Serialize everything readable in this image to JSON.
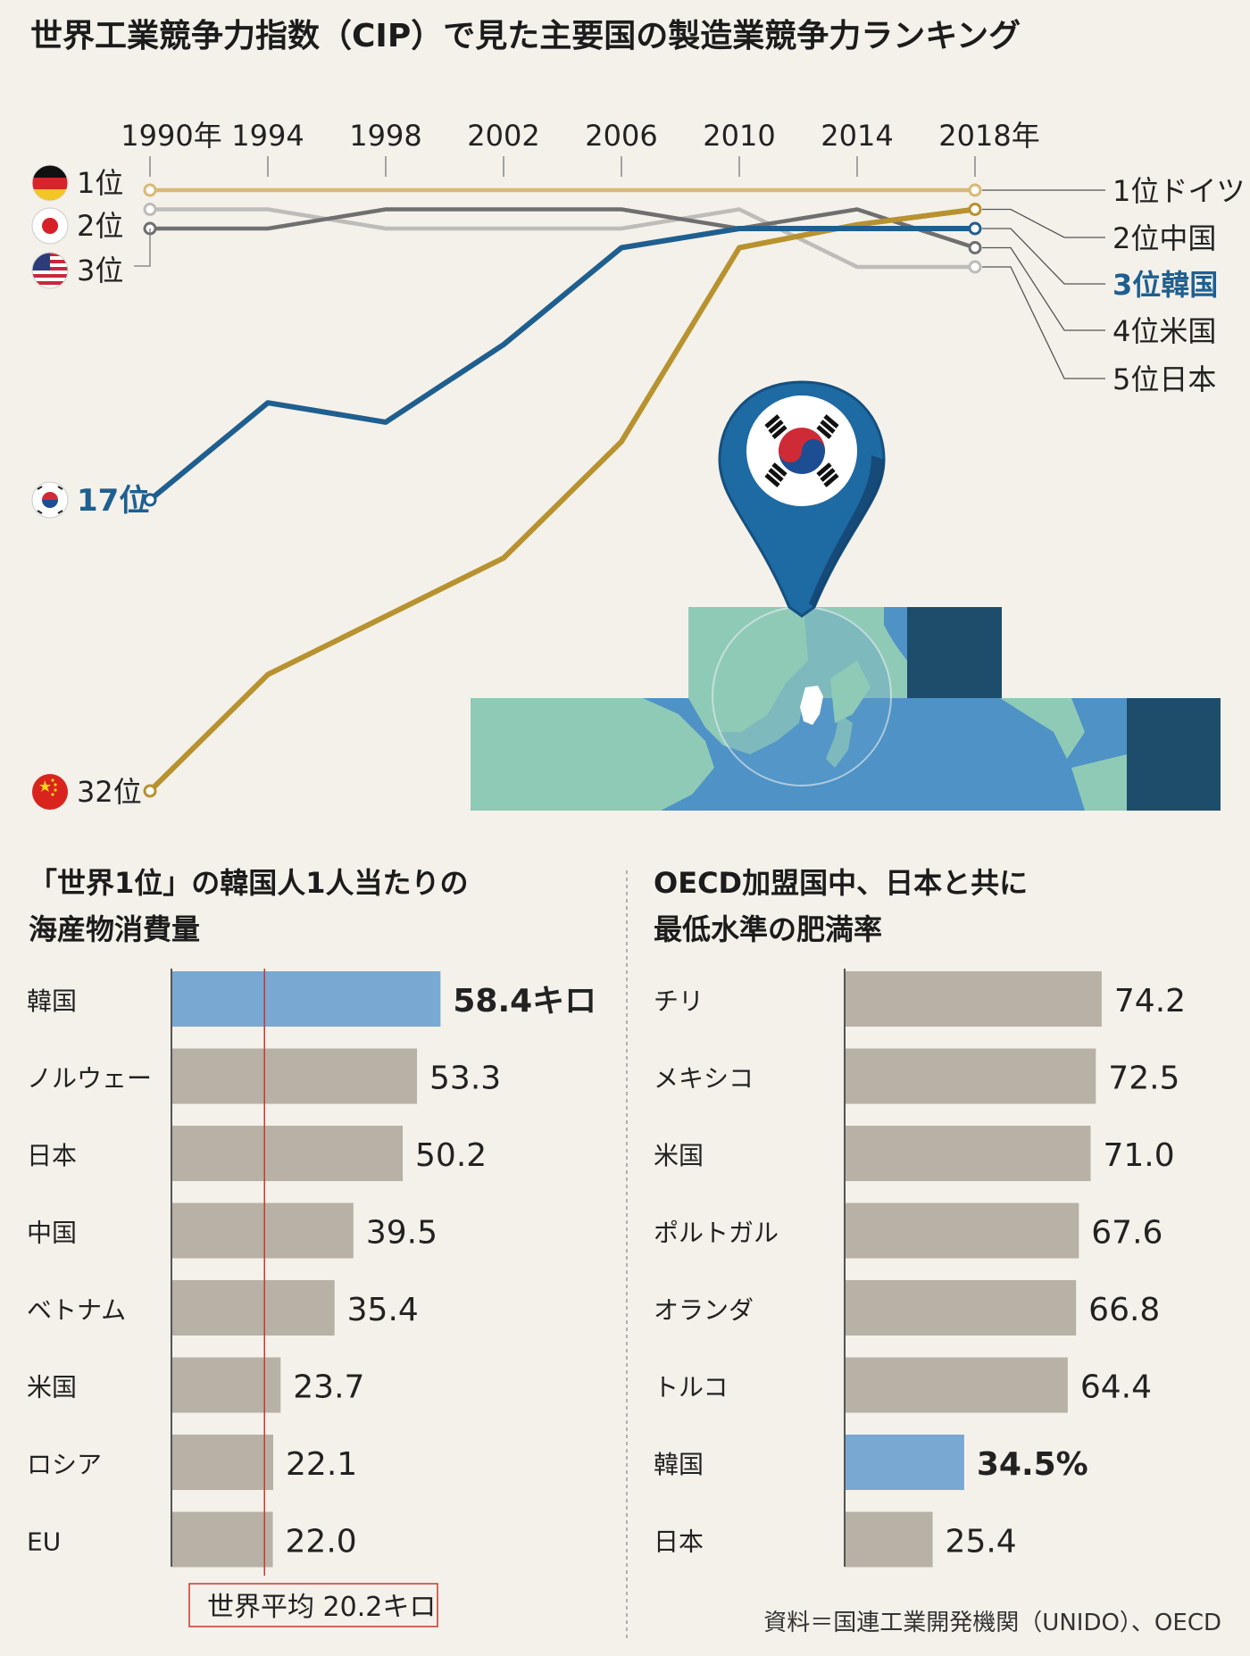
{
  "title": "世界工業競争力指数（CIP）で見た主要国の製造業競争力ランキング",
  "source": "資料＝国連工業開発機関（UNIDO）、OECD",
  "colors": {
    "background": "#f4f1ea",
    "korea": "#1f5f8f",
    "china": "#b7922f",
    "germany": "#d8b978",
    "japan": "#bdbcb9",
    "usa": "#6f6f6f",
    "bar_default": "#b7b1a6",
    "bar_highlight": "#79a8d2",
    "avg_line": "#c8372d",
    "map_land": "#8fcab7",
    "map_sea": "#4e92c6",
    "pin": "#1e6aa3"
  },
  "chart_data": [
    {
      "type": "line",
      "title": "世界工業競争力指数（CIP）で見た主要国の製造業競争力ランキング",
      "x": [
        "1990年",
        "1994",
        "1998",
        "2002",
        "2006",
        "2010",
        "2014",
        "2018年"
      ],
      "y_axis": "rank (inverted)",
      "ylim": [
        1,
        32
      ],
      "grid": false,
      "start_labels": [
        {
          "text": "1位",
          "flag": "germany-flag-icon"
        },
        {
          "text": "2位",
          "flag": "japan-flag-icon"
        },
        {
          "text": "3位",
          "flag": "usa-flag-icon"
        },
        {
          "text": "17位",
          "flag": "korea-flag-icon"
        },
        {
          "text": "32位",
          "flag": "china-flag-icon"
        }
      ],
      "end_labels": [
        "1位ドイツ",
        "2位中国",
        "3位韓国",
        "4位米国",
        "5位日本"
      ],
      "series": [
        {
          "key": "germany",
          "values": [
            1,
            1,
            1,
            1,
            1,
            1,
            1,
            1
          ]
        },
        {
          "key": "japan",
          "values": [
            2,
            2,
            3,
            3,
            3,
            2,
            5,
            5
          ]
        },
        {
          "key": "usa",
          "values": [
            3,
            3,
            2,
            2,
            2,
            3,
            2,
            4
          ]
        },
        {
          "key": "korea",
          "values": [
            17,
            12,
            13,
            9,
            4,
            3,
            3,
            3
          ]
        },
        {
          "key": "china",
          "values": [
            32,
            26,
            23,
            20,
            14,
            4,
            2.8,
            2
          ]
        }
      ]
    },
    {
      "type": "bar",
      "orientation": "horizontal",
      "title": "「世界1位」の韓国人1人当たりの 海産物消費量",
      "categories": [
        "韓国",
        "ノルウェー",
        "日本",
        "中国",
        "ベトナム",
        "米国",
        "ロシア",
        "EU"
      ],
      "values": [
        58.4,
        53.3,
        50.2,
        39.5,
        35.4,
        23.7,
        22.1,
        22.0
      ],
      "value_labels": [
        "58.4キロ",
        "53.3",
        "50.2",
        "39.5",
        "35.4",
        "23.7",
        "22.1",
        "22.0"
      ],
      "highlight": "韓国",
      "reference": {
        "label": "世界平均 20.2キロ",
        "value": 20.2
      }
    },
    {
      "type": "bar",
      "orientation": "horizontal",
      "title": "OECD加盟国中、日本と共に 最低水準の肥満率",
      "categories": [
        "チリ",
        "メキシコ",
        "米国",
        "ポルトガル",
        "オランダ",
        "トルコ",
        "韓国",
        "日本"
      ],
      "values": [
        74.2,
        72.5,
        71.0,
        67.6,
        66.8,
        64.4,
        34.5,
        25.4
      ],
      "value_labels": [
        "74.2",
        "72.5",
        "71.0",
        "67.6",
        "66.8",
        "64.4",
        "34.5%",
        "25.4"
      ],
      "highlight": "韓国"
    }
  ]
}
